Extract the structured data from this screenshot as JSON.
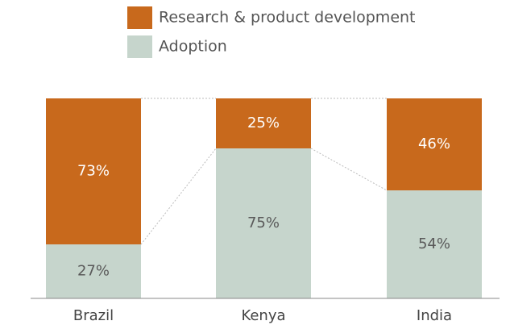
{
  "chart_data": {
    "type": "stacked_bar",
    "categories": [
      "Brazil",
      "Kenya",
      "India"
    ],
    "series": [
      {
        "name": "Adoption",
        "color": "#c6d5cc",
        "values": [
          27,
          75,
          54
        ],
        "value_labels": [
          "27%",
          "75%",
          "54%"
        ]
      },
      {
        "name": "Research & product development",
        "color": "#c8691c",
        "values": [
          73,
          25,
          46
        ],
        "value_labels": [
          "73%",
          "25%",
          "46%"
        ]
      }
    ],
    "legend": "top"
  }
}
